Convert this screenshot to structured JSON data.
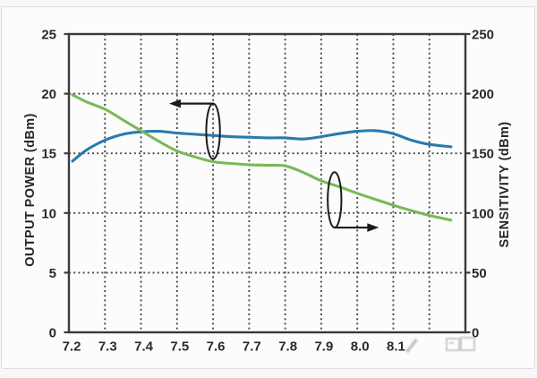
{
  "window": {
    "background": "#fcfcfc",
    "border_color": "#dedede"
  },
  "chart_data": {
    "type": "line",
    "title": "",
    "x_axis": {
      "label": "",
      "range": [
        7.2,
        8.3
      ],
      "tick_values": [
        7.2,
        7.3,
        7.4,
        7.5,
        7.6,
        7.7,
        7.8,
        7.9,
        8.0,
        8.1
      ],
      "tick_labels": [
        "7.2",
        "7.3",
        "7.4",
        "7.5",
        "7.6",
        "7.7",
        "7.8",
        "7.9",
        "8.0",
        "8.1"
      ],
      "gridline_values": [
        7.3,
        7.4,
        7.5,
        7.6,
        7.7,
        7.8,
        7.9,
        8.0,
        8.1,
        8.2
      ]
    },
    "y_axis_left": {
      "label": "OUTPUT POWER (dBm)",
      "range": [
        0,
        25
      ],
      "tick_values": [
        0,
        5,
        10,
        15,
        20,
        25
      ],
      "tick_labels": [
        "0",
        "5",
        "10",
        "15",
        "20",
        "25"
      ],
      "gridline_values": [
        5,
        10,
        15,
        20
      ]
    },
    "y_axis_right": {
      "label": "SENSITIVITY (dBm)",
      "range": [
        0,
        250
      ],
      "tick_values": [
        0,
        50,
        100,
        150,
        200,
        250
      ],
      "tick_labels": [
        "0",
        "50",
        "100",
        "150",
        "200",
        "250"
      ]
    },
    "grid": {
      "style": "dotted",
      "color": "#48484a"
    },
    "frame_color": "#3b3b3d",
    "x": [
      7.21,
      7.25,
      7.3,
      7.35,
      7.4,
      7.45,
      7.5,
      7.55,
      7.6,
      7.65,
      7.7,
      7.75,
      7.8,
      7.85,
      7.9,
      7.95,
      8.0,
      8.05,
      8.1,
      8.15,
      8.2,
      8.26
    ],
    "series": [
      {
        "name": "output-power",
        "axis": "left",
        "color": "#2a7aad",
        "values": [
          14.35,
          15.3,
          16.1,
          16.6,
          16.8,
          16.85,
          16.7,
          16.6,
          16.5,
          16.4,
          16.35,
          16.3,
          16.3,
          16.2,
          16.4,
          16.65,
          16.85,
          16.9,
          16.65,
          16.1,
          15.75,
          15.55
        ]
      },
      {
        "name": "sensitivity",
        "axis": "right",
        "color": "#7cb857",
        "values": [
          199,
          193,
          187,
          178,
          169,
          160,
          152,
          147,
          143,
          141.5,
          140.5,
          140,
          139.5,
          134,
          127,
          122,
          116.5,
          111.5,
          106.5,
          102,
          98,
          94
        ]
      }
    ],
    "annotations": [
      {
        "name": "left-axis-callout",
        "series": "output-power",
        "ellipse": {
          "cx": 7.6,
          "cy_left": 16.85,
          "rx_x": 0.019,
          "ry_left": 2.32
        },
        "arrow": {
          "from": "top",
          "to_x": 7.478
        },
        "color": "#1c1c1c"
      },
      {
        "name": "right-axis-callout",
        "series": "sensitivity",
        "ellipse": {
          "cx": 7.937,
          "cy_left": 11.1,
          "rx_x": 0.019,
          "ry_left": 2.32
        },
        "arrow": {
          "from": "bottom",
          "to_x": 8.06
        },
        "color": "#1c1c1c"
      }
    ]
  }
}
